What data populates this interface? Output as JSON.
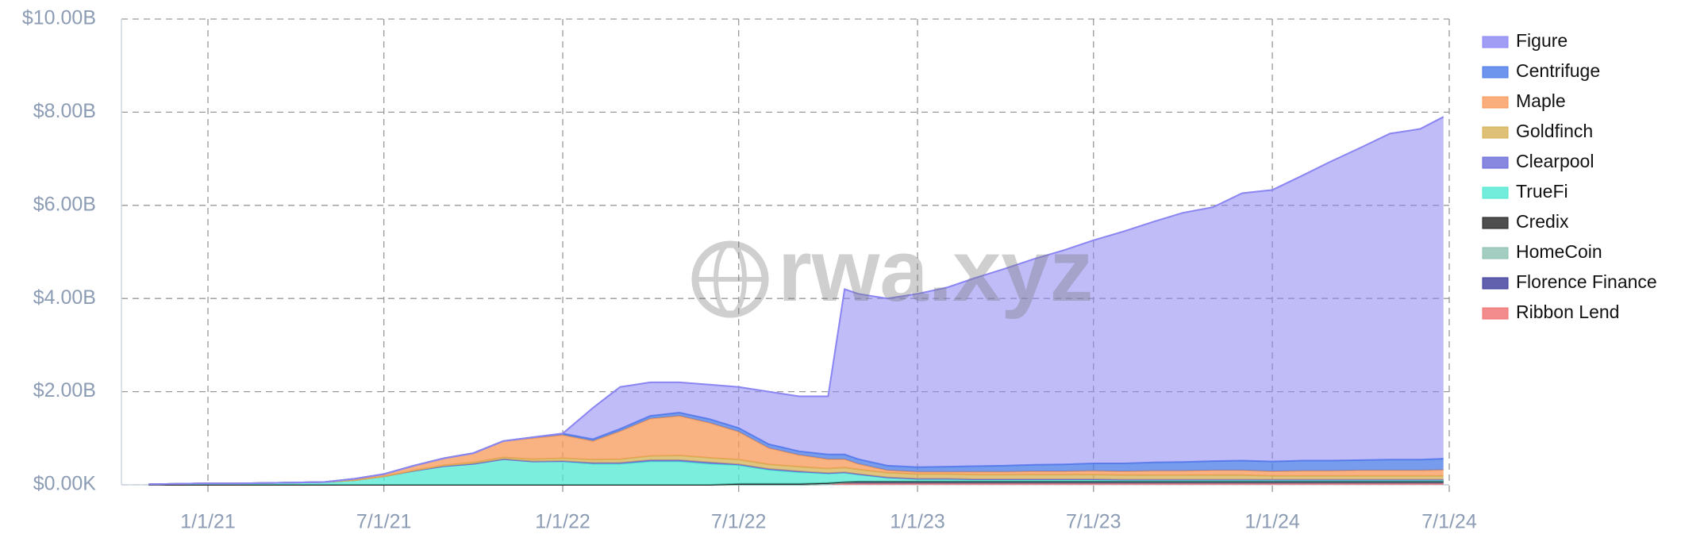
{
  "chart_data": {
    "type": "stacked_area",
    "watermark": "rwa.xyz",
    "x": [
      "2020-11-01",
      "2020-12-01",
      "2021-01-01",
      "2021-02-01",
      "2021-03-01",
      "2021-04-01",
      "2021-05-01",
      "2021-06-01",
      "2021-07-01",
      "2021-08-01",
      "2021-09-01",
      "2021-10-01",
      "2021-11-01",
      "2021-12-01",
      "2022-01-01",
      "2022-02-01",
      "2022-03-01",
      "2022-04-01",
      "2022-05-01",
      "2022-06-01",
      "2022-07-01",
      "2022-08-01",
      "2022-09-01",
      "2022-10-01",
      "2022-10-18",
      "2022-11-01",
      "2022-12-01",
      "2023-01-01",
      "2023-02-01",
      "2023-03-01",
      "2023-04-01",
      "2023-05-01",
      "2023-06-01",
      "2023-07-01",
      "2023-08-01",
      "2023-09-01",
      "2023-10-01",
      "2023-11-01",
      "2023-12-01",
      "2024-01-01",
      "2024-02-01",
      "2024-03-01",
      "2024-04-01",
      "2024-05-01",
      "2024-06-01",
      "2024-06-25"
    ],
    "series": [
      {
        "name": "Figure",
        "color": "#8a85f2",
        "values": [
          0,
          0,
          0,
          0,
          0,
          0,
          0,
          0,
          0,
          0,
          0,
          0,
          0,
          0,
          0,
          0.67,
          0.9,
          0.72,
          0.65,
          0.74,
          0.88,
          1.13,
          1.18,
          1.25,
          3.55,
          3.55,
          3.59,
          3.72,
          3.85,
          4.04,
          4.23,
          4.42,
          4.6,
          4.79,
          4.98,
          5.17,
          5.35,
          5.45,
          5.74,
          5.83,
          6.12,
          6.42,
          6.71,
          7.0,
          7.1,
          7.34
        ]
      },
      {
        "name": "Centrifuge",
        "color": "#4a7be8",
        "values": [
          0,
          0,
          0,
          0,
          0,
          0,
          0,
          0,
          0,
          0,
          0,
          0,
          0,
          0.02,
          0.03,
          0.04,
          0.05,
          0.06,
          0.07,
          0.08,
          0.08,
          0.08,
          0.08,
          0.1,
          0.1,
          0.1,
          0.1,
          0.1,
          0.11,
          0.12,
          0.13,
          0.14,
          0.15,
          0.16,
          0.17,
          0.18,
          0.19,
          0.2,
          0.21,
          0.21,
          0.22,
          0.22,
          0.22,
          0.23,
          0.23,
          0.24
        ]
      },
      {
        "name": "Maple",
        "color": "#f79a5a",
        "values": [
          0,
          0,
          0,
          0,
          0,
          0,
          0,
          0.03,
          0.05,
          0.1,
          0.15,
          0.2,
          0.35,
          0.45,
          0.5,
          0.4,
          0.6,
          0.8,
          0.85,
          0.75,
          0.6,
          0.35,
          0.25,
          0.2,
          0.18,
          0.12,
          0.05,
          0.05,
          0.05,
          0.06,
          0.06,
          0.07,
          0.07,
          0.08,
          0.08,
          0.09,
          0.09,
          0.1,
          0.1,
          0.1,
          0.11,
          0.11,
          0.12,
          0.12,
          0.12,
          0.13
        ]
      },
      {
        "name": "Goldfinch",
        "color": "#d6b055",
        "values": [
          0,
          0,
          0,
          0,
          0,
          0,
          0,
          0,
          0,
          0.01,
          0.02,
          0.03,
          0.04,
          0.05,
          0.06,
          0.07,
          0.08,
          0.09,
          0.1,
          0.1,
          0.1,
          0.1,
          0.1,
          0.1,
          0.1,
          0.1,
          0.1,
          0.1,
          0.1,
          0.1,
          0.1,
          0.1,
          0.1,
          0.1,
          0.1,
          0.1,
          0.1,
          0.1,
          0.1,
          0.08,
          0.08,
          0.08,
          0.08,
          0.08,
          0.08,
          0.08
        ]
      },
      {
        "name": "Clearpool",
        "color": "#6a6ad8",
        "values": [
          0,
          0,
          0,
          0,
          0,
          0,
          0,
          0,
          0,
          0,
          0,
          0,
          0,
          0,
          0.01,
          0.02,
          0.02,
          0.03,
          0.03,
          0.03,
          0.02,
          0.02,
          0.02,
          0.01,
          0.01,
          0.01,
          0.01,
          0.01,
          0.01,
          0.01,
          0.01,
          0.01,
          0.01,
          0.01,
          0.01,
          0.01,
          0.01,
          0.01,
          0.01,
          0.01,
          0.01,
          0.01,
          0.01,
          0.01,
          0.01,
          0.01
        ]
      },
      {
        "name": "TrueFi",
        "color": "#4fe8d2",
        "values": [
          0.01,
          0.02,
          0.03,
          0.03,
          0.04,
          0.05,
          0.06,
          0.1,
          0.18,
          0.3,
          0.4,
          0.45,
          0.55,
          0.5,
          0.5,
          0.45,
          0.45,
          0.5,
          0.5,
          0.45,
          0.4,
          0.3,
          0.25,
          0.2,
          0.2,
          0.15,
          0.08,
          0.05,
          0.05,
          0.04,
          0.04,
          0.04,
          0.04,
          0.04,
          0.03,
          0.03,
          0.03,
          0.03,
          0.03,
          0.03,
          0.03,
          0.03,
          0.03,
          0.03,
          0.03,
          0.03
        ]
      },
      {
        "name": "Credix",
        "color": "#222222",
        "values": [
          0,
          0,
          0,
          0,
          0,
          0,
          0,
          0,
          0,
          0,
          0,
          0,
          0,
          0,
          0,
          0,
          0,
          0,
          0,
          0,
          0.02,
          0.02,
          0.02,
          0.02,
          0.01,
          0.01,
          0.01,
          0.01,
          0.01,
          0.01,
          0.01,
          0.01,
          0.01,
          0.01,
          0.01,
          0.01,
          0.01,
          0.01,
          0.01,
          0.01,
          0.01,
          0.01,
          0.01,
          0.01,
          0.01,
          0.01
        ]
      },
      {
        "name": "HomeCoin",
        "color": "#8cc0b0",
        "values": [
          0,
          0,
          0,
          0,
          0,
          0,
          0,
          0,
          0,
          0,
          0,
          0,
          0,
          0,
          0,
          0,
          0,
          0,
          0,
          0,
          0,
          0,
          0,
          0,
          0,
          0.01,
          0.01,
          0.01,
          0.01,
          0.01,
          0.01,
          0.01,
          0.01,
          0.01,
          0.01,
          0.01,
          0.01,
          0.01,
          0.01,
          0.01,
          0.01,
          0.01,
          0.01,
          0.01,
          0.01,
          0.01
        ]
      },
      {
        "name": "Florence Finance",
        "color": "#3a3a9a",
        "values": [
          0,
          0,
          0,
          0,
          0,
          0,
          0,
          0,
          0,
          0,
          0,
          0,
          0,
          0,
          0,
          0,
          0,
          0,
          0,
          0,
          0,
          0,
          0,
          0,
          0.02,
          0.02,
          0.02,
          0.02,
          0.02,
          0.02,
          0.02,
          0.02,
          0.02,
          0.02,
          0.02,
          0.02,
          0.02,
          0.02,
          0.02,
          0.02,
          0.02,
          0.02,
          0.02,
          0.02,
          0.02,
          0.02
        ]
      },
      {
        "name": "Ribbon Lend",
        "color": "#f07070",
        "values": [
          0,
          0,
          0,
          0,
          0,
          0,
          0,
          0,
          0,
          0,
          0,
          0,
          0,
          0,
          0,
          0,
          0,
          0,
          0,
          0,
          0,
          0,
          0,
          0.02,
          0.03,
          0.03,
          0.03,
          0.03,
          0.03,
          0.03,
          0.03,
          0.03,
          0.03,
          0.03,
          0.03,
          0.03,
          0.03,
          0.03,
          0.03,
          0.03,
          0.03,
          0.03,
          0.03,
          0.03,
          0.03,
          0.03
        ]
      }
    ],
    "xlim": [
      "2020-10-04",
      "2024-07-01"
    ],
    "xticks": [
      {
        "value": "2021-01-01",
        "label": "1/1/21"
      },
      {
        "value": "2021-07-01",
        "label": "7/1/21"
      },
      {
        "value": "2022-01-01",
        "label": "1/1/22"
      },
      {
        "value": "2022-07-01",
        "label": "7/1/22"
      },
      {
        "value": "2023-01-01",
        "label": "1/1/23"
      },
      {
        "value": "2023-07-01",
        "label": "7/1/23"
      },
      {
        "value": "2024-01-01",
        "label": "1/1/24"
      },
      {
        "value": "2024-07-01",
        "label": "7/1/24"
      }
    ],
    "ylim": [
      0,
      10
    ],
    "yticks": [
      {
        "value": 0,
        "label": "$0.00K"
      },
      {
        "value": 2,
        "label": "$2.00B"
      },
      {
        "value": 4,
        "label": "$4.00B"
      },
      {
        "value": 6,
        "label": "$6.00B"
      },
      {
        "value": 8,
        "label": "$8.00B"
      },
      {
        "value": 10,
        "label": "$10.00B"
      }
    ],
    "grid": true,
    "legend": "right"
  }
}
